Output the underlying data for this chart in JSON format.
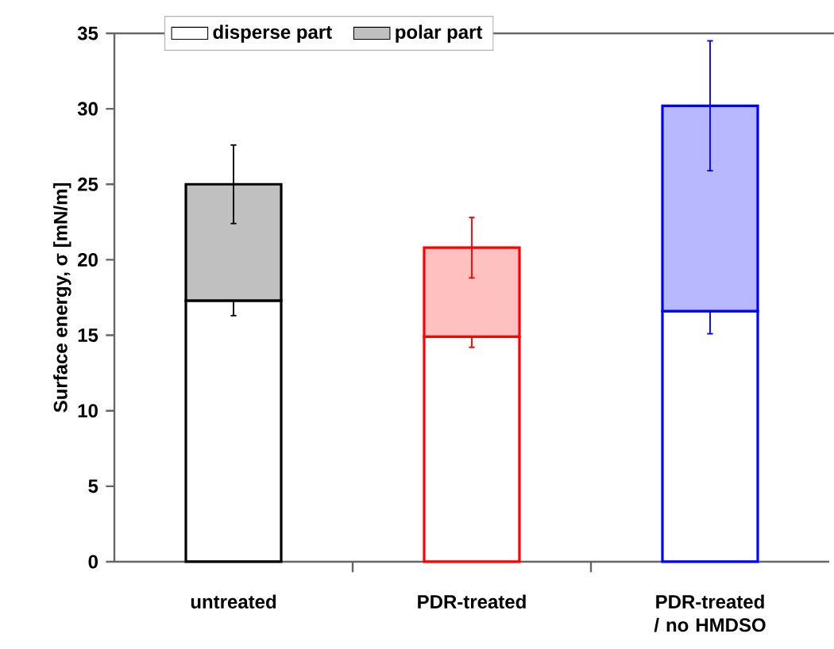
{
  "chart_data": {
    "type": "bar",
    "stacked": true,
    "ylabel": "Surface energy, σ [mN/m]",
    "categories": [
      "untreated",
      "PDR-treated",
      "PDR-treated / no HMDSO"
    ],
    "series": [
      {
        "name": "disperse part",
        "color": "#ffffff",
        "colors": [
          "#ffffff",
          "#ffffff",
          "#ffffff"
        ],
        "values": [
          17.3,
          14.9,
          16.6
        ],
        "errors": [
          1.0,
          0.7,
          1.5
        ]
      },
      {
        "name": "polar part",
        "color": "#c0c0c0",
        "colors": [
          "#c0c0c0",
          "#ffc0c0",
          "#b8b8ff"
        ],
        "values": [
          7.7,
          5.9,
          13.6
        ],
        "errors": [
          2.6,
          2.0,
          4.3
        ]
      }
    ],
    "ylim": [
      0,
      35
    ],
    "yticks": [
      0,
      5,
      10,
      15,
      20,
      25,
      30,
      35
    ],
    "legend": "top"
  }
}
